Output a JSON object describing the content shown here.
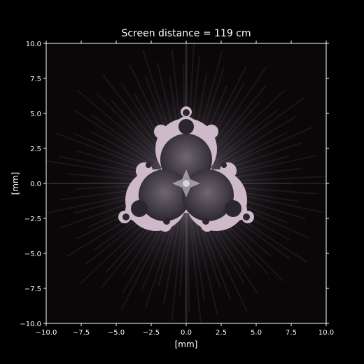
{
  "chart_data": {
    "type": "heatmap",
    "title": "Screen distance = 119 cm",
    "xlabel": "[mm]",
    "ylabel": "[mm]",
    "xlim": [
      -10.0,
      10.0
    ],
    "ylim": [
      -10.0,
      10.0
    ],
    "x_ticks": [
      -10.0,
      -7.5,
      -5.0,
      -2.5,
      0.0,
      2.5,
      5.0,
      7.5,
      10.0
    ],
    "y_ticks": [
      -10.0,
      -7.5,
      -5.0,
      -2.5,
      0.0,
      2.5,
      5.0,
      7.5,
      10.0
    ],
    "x_tick_labels": [
      "−10.0",
      "−7.5",
      "−5.0",
      "−2.5",
      "0.0",
      "2.5",
      "5.0",
      "7.5",
      "10.0"
    ],
    "y_tick_labels": [
      "10.0",
      "7.5",
      "5.0",
      "2.5",
      "0.0",
      "−2.5",
      "−5.0",
      "−7.5",
      "−10.0"
    ],
    "grid": false,
    "colors": {
      "background": "#000000",
      "pattern": "#d8c8d2",
      "axes": "#ffffff"
    }
  }
}
